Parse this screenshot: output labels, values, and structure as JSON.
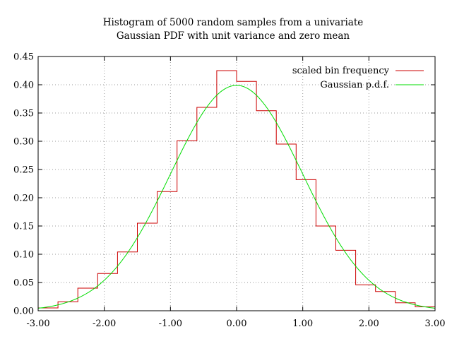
{
  "chart_data": {
    "type": "line",
    "title": "Histogram of 5000 random samples from a univariate",
    "subtitle": "Gaussian PDF with unit variance and zero mean",
    "xlabel": "",
    "ylabel": "",
    "xlim": [
      -3.0,
      3.0
    ],
    "ylim": [
      0.0,
      0.45
    ],
    "grid": true,
    "legend_position": "top-right",
    "x_ticks": [
      -3.0,
      -2.0,
      -1.0,
      0.0,
      1.0,
      2.0,
      3.0
    ],
    "x_tick_labels": [
      "-3.00",
      "-2.00",
      "-1.00",
      "0.00",
      "1.00",
      "2.00",
      "3.00"
    ],
    "y_ticks": [
      0.0,
      0.05,
      0.1,
      0.15,
      0.2,
      0.25,
      0.3,
      0.35,
      0.4,
      0.45
    ],
    "y_tick_labels": [
      "0.00",
      "0.05",
      "0.10",
      "0.15",
      "0.20",
      "0.25",
      "0.30",
      "0.35",
      "0.40",
      "0.45"
    ],
    "series": [
      {
        "name": "scaled bin frequency",
        "kind": "step",
        "color": "#cc0000",
        "bin_edges": [
          -3.0,
          -2.7,
          -2.4,
          -2.1,
          -1.8,
          -1.5,
          -1.2,
          -0.9,
          -0.6,
          -0.3,
          0.0,
          0.3,
          0.6,
          0.9,
          1.2,
          1.5,
          1.8,
          2.1,
          2.4,
          2.7,
          3.0
        ],
        "values": [
          0.005,
          0.016,
          0.04,
          0.066,
          0.104,
          0.155,
          0.211,
          0.301,
          0.36,
          0.425,
          0.406,
          0.354,
          0.295,
          0.232,
          0.15,
          0.107,
          0.046,
          0.034,
          0.014,
          0.007
        ]
      },
      {
        "name": "Gaussian p.d.f.",
        "kind": "curve",
        "color": "#00dd00",
        "function": "gaussian",
        "mean": 0,
        "variance": 1
      }
    ]
  }
}
